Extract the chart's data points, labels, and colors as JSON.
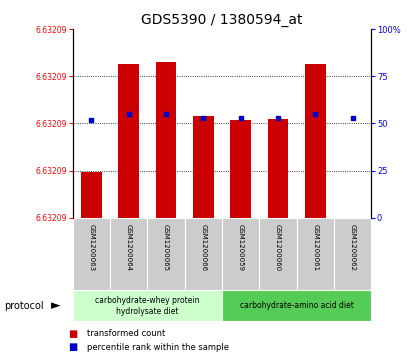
{
  "title": "GDS5390 / 1380594_at",
  "samples": [
    "GSM1200063",
    "GSM1200064",
    "GSM1200065",
    "GSM1200066",
    "GSM1200059",
    "GSM1200060",
    "GSM1200061",
    "GSM1200062"
  ],
  "bar_tops": [
    6.6325,
    6.6408,
    6.641,
    6.6368,
    6.6365,
    6.6366,
    6.6408,
    6.6288
  ],
  "percentile_ranks": [
    52,
    55,
    55,
    53,
    53,
    53,
    55,
    53
  ],
  "ymin": 6.629,
  "ymax": 6.6435,
  "left_ytick_label": "6.63209",
  "right_ytick_values": [
    0,
    25,
    50,
    75,
    100
  ],
  "bar_color": "#cc0000",
  "dot_color": "#0000cc",
  "protocol_groups": [
    {
      "label": "carbohydrate-whey protein\nhydrolysate diet",
      "start": 0,
      "end": 4,
      "color": "#ccffcc"
    },
    {
      "label": "carbohydrate-amino acid diet",
      "start": 4,
      "end": 8,
      "color": "#55cc55"
    }
  ],
  "legend_red_label": "transformed count",
  "legend_blue_label": "percentile rank within the sample",
  "protocol_label": "protocol",
  "label_bg_color": "#cccccc",
  "title_fontsize": 10
}
